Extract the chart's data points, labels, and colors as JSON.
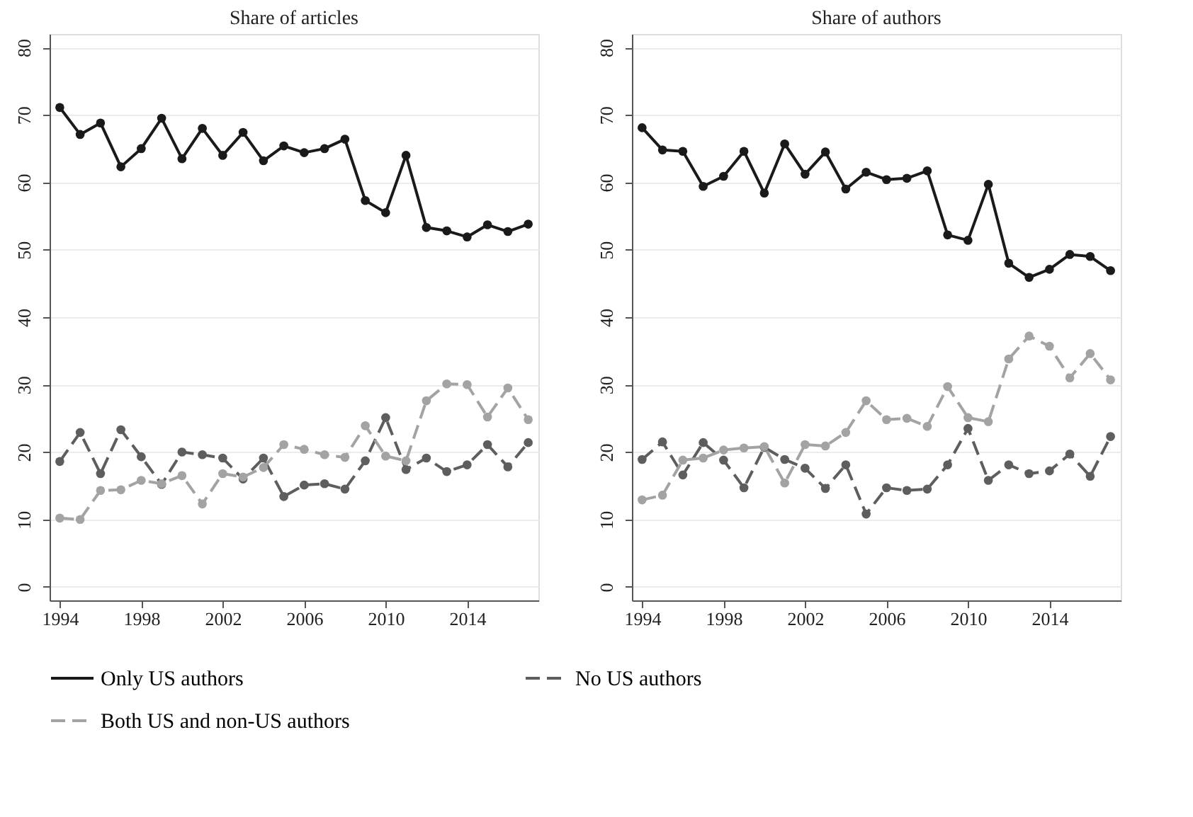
{
  "chart_data": [
    {
      "type": "line",
      "title": "Share of articles",
      "x": [
        1994,
        1995,
        1996,
        1997,
        1998,
        1999,
        2000,
        2001,
        2002,
        2003,
        2004,
        2005,
        2006,
        2007,
        2008,
        2009,
        2010,
        2011,
        2012,
        2013,
        2014,
        2015,
        2016,
        2017
      ],
      "xlim": [
        1993.5,
        2017.5
      ],
      "xticks": [
        1994,
        1998,
        2002,
        2006,
        2010,
        2014
      ],
      "ylim": [
        -2,
        82
      ],
      "yticks": [
        0,
        10,
        20,
        30,
        40,
        50,
        60,
        70,
        80
      ],
      "grid": "y",
      "legend": "bottom",
      "marker": "circle",
      "series": [
        {
          "name": "Only US authors",
          "color": "#1a1a1a",
          "line_style": "solid",
          "values": [
            71.1,
            67.1,
            68.8,
            62.3,
            65.0,
            69.5,
            63.5,
            68.0,
            64.0,
            67.4,
            63.2,
            65.4,
            64.4,
            65.0,
            66.4,
            57.3,
            55.5,
            64.0,
            53.3,
            52.8,
            51.9,
            53.7,
            52.7,
            53.8
          ]
        },
        {
          "name": "No US authors",
          "color": "#5e5e5e",
          "line_style": "dashed",
          "values": [
            18.6,
            22.9,
            16.8,
            23.3,
            19.3,
            15.2,
            20.0,
            19.6,
            19.1,
            16.0,
            19.1,
            13.4,
            15.1,
            15.3,
            14.5,
            18.7,
            25.1,
            17.4,
            19.1,
            17.1,
            18.1,
            21.1,
            17.8,
            21.4
          ]
        },
        {
          "name": "Both US and non-US authors",
          "color": "#a3a3a3",
          "line_style": "dashed",
          "values": [
            10.2,
            10.0,
            14.3,
            14.4,
            15.8,
            15.3,
            16.5,
            12.3,
            16.8,
            16.3,
            17.7,
            21.1,
            20.4,
            19.6,
            19.2,
            23.9,
            19.4,
            18.7,
            27.6,
            30.1,
            30.0,
            25.2,
            29.5,
            24.8
          ]
        }
      ]
    },
    {
      "type": "line",
      "title": "Share of authors",
      "x": [
        1994,
        1995,
        1996,
        1997,
        1998,
        1999,
        2000,
        2001,
        2002,
        2003,
        2004,
        2005,
        2006,
        2007,
        2008,
        2009,
        2010,
        2011,
        2012,
        2013,
        2014,
        2015,
        2016,
        2017
      ],
      "xlim": [
        1993.5,
        2017.5
      ],
      "xticks": [
        1994,
        1998,
        2002,
        2006,
        2010,
        2014
      ],
      "ylim": [
        -2,
        82
      ],
      "yticks": [
        0,
        10,
        20,
        30,
        40,
        50,
        60,
        70,
        80
      ],
      "grid": "y",
      "legend": "bottom",
      "marker": "circle",
      "series": [
        {
          "name": "Only US authors",
          "color": "#1a1a1a",
          "line_style": "solid",
          "values": [
            68.1,
            64.8,
            64.6,
            59.4,
            60.9,
            64.6,
            58.4,
            65.7,
            61.2,
            64.5,
            59.0,
            61.5,
            60.4,
            60.6,
            61.7,
            52.2,
            51.4,
            59.7,
            48.0,
            45.9,
            47.1,
            49.3,
            49.0,
            46.9
          ]
        },
        {
          "name": "No US authors",
          "color": "#5e5e5e",
          "line_style": "dashed",
          "values": [
            18.9,
            21.5,
            16.6,
            21.4,
            18.8,
            14.7,
            20.7,
            18.9,
            17.6,
            14.6,
            18.1,
            10.8,
            14.7,
            14.3,
            14.5,
            18.1,
            23.5,
            15.8,
            18.1,
            16.8,
            17.2,
            19.7,
            16.4,
            22.3
          ]
        },
        {
          "name": "Both US and non-US authors",
          "color": "#a3a3a3",
          "line_style": "dashed",
          "values": [
            12.9,
            13.6,
            18.8,
            19.1,
            20.3,
            20.6,
            20.8,
            15.4,
            21.1,
            20.9,
            22.9,
            27.6,
            24.8,
            25.0,
            23.8,
            29.7,
            25.1,
            24.5,
            33.8,
            37.2,
            35.7,
            31.0,
            34.6,
            30.7
          ]
        }
      ]
    }
  ]
}
